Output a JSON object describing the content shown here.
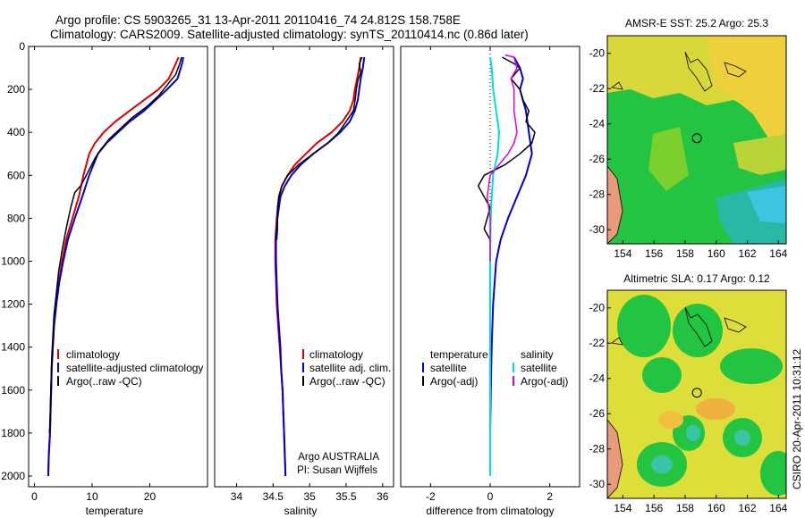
{
  "header": {
    "line1": "Argo profile: CS 5903265_31 13-Apr-2011 20110416_74 24.812S 158.758E",
    "line2": "Climatology: CARS2009. Satellite-adjusted climatology: synTS_20110414.nc (0.86d later)"
  },
  "side_label": "CSIRO 20-Apr-2011 10:31:12",
  "colors": {
    "climatology": "#dd0000",
    "satellite": "#0000cc",
    "argo": "#000000",
    "sat_salinity": "#00dddd",
    "argo_salinity": "#dd00dd"
  },
  "chart_data": [
    {
      "type": "line",
      "id": "temperature",
      "xlabel": "temperature",
      "ylabel": "",
      "xlim": [
        -1,
        30
      ],
      "ylim": [
        2050,
        0
      ],
      "xticks": [
        0,
        10,
        20
      ],
      "yticks": [
        0,
        200,
        400,
        600,
        800,
        1000,
        1200,
        1400,
        1600,
        1800,
        2000
      ],
      "legend": {
        "placement": "bottom",
        "entries": [
          "climatology",
          "satellite-adjusted climatology",
          "Argo(..raw -QC)"
        ]
      },
      "series": [
        {
          "name": "climatology",
          "color": "#dd0000",
          "points": [
            [
              25.0,
              50
            ],
            [
              24.5,
              80
            ],
            [
              23.3,
              150
            ],
            [
              21.5,
              200
            ],
            [
              19.0,
              250
            ],
            [
              16.5,
              300
            ],
            [
              14.0,
              350
            ],
            [
              12.0,
              400
            ],
            [
              10.5,
              450
            ],
            [
              9.5,
              500
            ],
            [
              8.5,
              600
            ],
            [
              7.7,
              700
            ],
            [
              6.6,
              800
            ],
            [
              5.5,
              900
            ],
            [
              4.8,
              1000
            ],
            [
              4.2,
              1100
            ],
            [
              3.8,
              1200
            ],
            [
              3.4,
              1300
            ],
            [
              3.2,
              1400
            ],
            [
              3.0,
              1500
            ],
            [
              2.9,
              1600
            ],
            [
              2.8,
              1700
            ],
            [
              2.7,
              1800
            ],
            [
              2.5,
              1900
            ],
            [
              2.4,
              2000
            ]
          ]
        },
        {
          "name": "satellite",
          "color": "#0000cc",
          "points": [
            [
              25.8,
              50
            ],
            [
              25.6,
              80
            ],
            [
              24.8,
              150
            ],
            [
              23.0,
              200
            ],
            [
              21.0,
              250
            ],
            [
              19.0,
              300
            ],
            [
              16.5,
              350
            ],
            [
              14.5,
              400
            ],
            [
              12.5,
              450
            ],
            [
              11.0,
              500
            ],
            [
              9.5,
              600
            ],
            [
              8.3,
              700
            ],
            [
              7.0,
              800
            ],
            [
              5.8,
              900
            ],
            [
              5.0,
              1000
            ],
            [
              4.3,
              1100
            ],
            [
              3.8,
              1200
            ],
            [
              3.4,
              1300
            ],
            [
              3.2,
              1400
            ],
            [
              3.0,
              1500
            ],
            [
              2.9,
              1600
            ],
            [
              2.8,
              1700
            ],
            [
              2.7,
              1800
            ],
            [
              2.5,
              1900
            ],
            [
              2.4,
              2000
            ]
          ]
        },
        {
          "name": "Argo",
          "color": "#000000",
          "points": [
            [
              25.5,
              50
            ],
            [
              25.2,
              80
            ],
            [
              24.5,
              130
            ],
            [
              23.0,
              180
            ],
            [
              21.5,
              230
            ],
            [
              19.5,
              280
            ],
            [
              17.0,
              330
            ],
            [
              15.0,
              380
            ],
            [
              13.0,
              430
            ],
            [
              11.5,
              480
            ],
            [
              10.5,
              520
            ],
            [
              9.0,
              600
            ],
            [
              8.0,
              650
            ],
            [
              7.0,
              680
            ],
            [
              6.3,
              750
            ],
            [
              5.5,
              850
            ],
            [
              4.8,
              950
            ],
            [
              4.2,
              1050
            ],
            [
              3.8,
              1150
            ],
            [
              3.4,
              1250
            ],
            [
              3.2,
              1350
            ],
            [
              3.0,
              1450
            ],
            [
              2.9,
              1550
            ],
            [
              2.8,
              1650
            ],
            [
              2.7,
              1750
            ],
            [
              2.6,
              1800
            ]
          ]
        }
      ]
    },
    {
      "type": "line",
      "id": "salinity",
      "xlabel": "salinity",
      "ylabel": "",
      "xlim": [
        33.7,
        36.15
      ],
      "ylim": [
        2050,
        0
      ],
      "xticks": [
        34,
        34.5,
        35,
        35.5,
        36
      ],
      "yticks": [],
      "legend": {
        "placement": "bottom",
        "entries": [
          "climatology",
          "satellite adj. clim.",
          "Argo(..raw -QC)"
        ]
      },
      "annotation": [
        "Argo AUSTRALIA",
        "PI: Susan Wijffels"
      ],
      "series": [
        {
          "name": "climatology",
          "color": "#dd0000",
          "points": [
            [
              35.7,
              50
            ],
            [
              35.68,
              100
            ],
            [
              35.65,
              150
            ],
            [
              35.62,
              200
            ],
            [
              35.6,
              250
            ],
            [
              35.55,
              300
            ],
            [
              35.45,
              350
            ],
            [
              35.3,
              400
            ],
            [
              35.1,
              450
            ],
            [
              34.95,
              500
            ],
            [
              34.8,
              550
            ],
            [
              34.7,
              600
            ],
            [
              34.62,
              650
            ],
            [
              34.58,
              700
            ],
            [
              34.55,
              800
            ],
            [
              34.53,
              900
            ],
            [
              34.53,
              1000
            ],
            [
              34.54,
              1100
            ],
            [
              34.55,
              1200
            ],
            [
              34.57,
              1300
            ],
            [
              34.59,
              1400
            ],
            [
              34.61,
              1500
            ],
            [
              34.63,
              1600
            ],
            [
              34.64,
              1700
            ],
            [
              34.65,
              1800
            ],
            [
              34.66,
              1900
            ],
            [
              34.67,
              2000
            ]
          ]
        },
        {
          "name": "satellite",
          "color": "#0000cc",
          "points": [
            [
              35.75,
              50
            ],
            [
              35.73,
              100
            ],
            [
              35.7,
              150
            ],
            [
              35.68,
              200
            ],
            [
              35.66,
              250
            ],
            [
              35.62,
              300
            ],
            [
              35.55,
              350
            ],
            [
              35.42,
              400
            ],
            [
              35.25,
              450
            ],
            [
              35.05,
              500
            ],
            [
              34.88,
              550
            ],
            [
              34.75,
              600
            ],
            [
              34.66,
              650
            ],
            [
              34.6,
              700
            ],
            [
              34.56,
              800
            ],
            [
              34.54,
              900
            ],
            [
              34.54,
              1000
            ],
            [
              34.55,
              1100
            ],
            [
              34.56,
              1200
            ],
            [
              34.58,
              1300
            ],
            [
              34.6,
              1400
            ],
            [
              34.61,
              1500
            ],
            [
              34.63,
              1600
            ],
            [
              34.64,
              1700
            ],
            [
              34.65,
              1800
            ],
            [
              34.66,
              1900
            ],
            [
              34.67,
              2000
            ]
          ]
        },
        {
          "name": "Argo",
          "color": "#000000",
          "points": [
            [
              35.72,
              50
            ],
            [
              35.68,
              80
            ],
            [
              35.7,
              120
            ],
            [
              35.66,
              160
            ],
            [
              35.64,
              200
            ],
            [
              35.62,
              260
            ],
            [
              35.6,
              300
            ],
            [
              35.5,
              350
            ],
            [
              35.4,
              400
            ],
            [
              35.25,
              450
            ],
            [
              35.05,
              500
            ],
            [
              34.85,
              550
            ],
            [
              34.7,
              600
            ],
            [
              34.62,
              650
            ],
            [
              34.58,
              700
            ],
            [
              34.56,
              750
            ],
            [
              34.56,
              850
            ],
            [
              34.55,
              900
            ]
          ]
        }
      ]
    },
    {
      "type": "line",
      "id": "difference",
      "xlabel": "difference from climatology",
      "ylabel": "",
      "xlim": [
        -3,
        3
      ],
      "ylim": [
        2050,
        0
      ],
      "xticks": [
        -2,
        0,
        2
      ],
      "yticks": [],
      "legend": {
        "placement": "bottom",
        "columns": [
          {
            "title": "temperature",
            "entries": [
              "satellite",
              "Argo(-adj)"
            ]
          },
          {
            "title": "salinity",
            "entries": [
              "satellite",
              "Argo(-adj)"
            ]
          }
        ]
      },
      "series": [
        {
          "name": "temperature satellite",
          "color": "#0000cc",
          "points": [
            [
              0.8,
              50
            ],
            [
              1.0,
              100
            ],
            [
              1.1,
              150
            ],
            [
              1.0,
              200
            ],
            [
              1.2,
              300
            ],
            [
              1.3,
              400
            ],
            [
              1.4,
              500
            ],
            [
              1.2,
              600
            ],
            [
              0.9,
              700
            ],
            [
              0.6,
              800
            ],
            [
              0.35,
              900
            ],
            [
              0.2,
              1000
            ],
            [
              0.1,
              1200
            ],
            [
              0.05,
              1400
            ],
            [
              0.02,
              1600
            ],
            [
              0.0,
              1800
            ],
            [
              0.0,
              2000
            ]
          ]
        },
        {
          "name": "temperature Argo(-adj)",
          "color": "#000000",
          "points": [
            [
              0.4,
              50
            ],
            [
              0.8,
              80
            ],
            [
              1.0,
              100
            ],
            [
              0.7,
              150
            ],
            [
              1.0,
              200
            ],
            [
              1.1,
              250
            ],
            [
              1.3,
              300
            ],
            [
              1.2,
              350
            ],
            [
              1.5,
              400
            ],
            [
              1.4,
              450
            ],
            [
              1.0,
              500
            ],
            [
              0.5,
              550
            ],
            [
              -0.2,
              600
            ],
            [
              -0.4,
              650
            ],
            [
              -0.2,
              700
            ],
            [
              0.0,
              750
            ],
            [
              -0.1,
              800
            ],
            [
              -0.2,
              850
            ],
            [
              0.0,
              900
            ],
            [
              0.0,
              1000
            ],
            [
              0.0,
              1200
            ],
            [
              0.0,
              1500
            ],
            [
              0.0,
              1800
            ]
          ]
        },
        {
          "name": "salinity satellite",
          "color": "#00dddd",
          "points": [
            [
              0.0,
              50
            ],
            [
              0.05,
              100
            ],
            [
              0.1,
              200
            ],
            [
              0.2,
              300
            ],
            [
              0.3,
              400
            ],
            [
              0.25,
              500
            ],
            [
              0.1,
              600
            ],
            [
              0.05,
              700
            ],
            [
              0.02,
              800
            ],
            [
              0.01,
              900
            ],
            [
              0.0,
              1000
            ],
            [
              0.0,
              1200
            ],
            [
              0.0,
              1500
            ],
            [
              0.0,
              1800
            ],
            [
              0.0,
              2000
            ]
          ]
        },
        {
          "name": "salinity Argo(-adj)",
          "color": "#dd00dd",
          "points": [
            [
              0.5,
              40
            ],
            [
              0.8,
              50
            ],
            [
              0.9,
              100
            ],
            [
              0.7,
              150
            ],
            [
              0.8,
              200
            ],
            [
              0.8,
              300
            ],
            [
              0.9,
              400
            ],
            [
              0.8,
              450
            ],
            [
              0.6,
              500
            ],
            [
              0.3,
              550
            ],
            [
              0.0,
              600
            ],
            [
              -0.1,
              700
            ],
            [
              0.0,
              800
            ],
            [
              0.0,
              900
            ],
            [
              0.0,
              1000
            ]
          ]
        }
      ]
    },
    {
      "type": "heatmap",
      "id": "sst",
      "title": "AMSR-E SST: 25.2  Argo: 25.3",
      "xlim": [
        153,
        164.5
      ],
      "ylim": [
        -30.8,
        -19
      ],
      "xticks": [
        154,
        156,
        158,
        160,
        162,
        164
      ],
      "yticks": [
        -20,
        -22,
        -24,
        -26,
        -28,
        -30
      ],
      "marker": [
        158.76,
        -24.81
      ]
    },
    {
      "type": "heatmap",
      "id": "sla",
      "title": "Altimetric SLA: 0.17  Argo: 0.12",
      "xlim": [
        153,
        164.5
      ],
      "ylim": [
        -30.8,
        -19
      ],
      "xticks": [
        154,
        156,
        158,
        160,
        162,
        164
      ],
      "yticks": [
        -20,
        -22,
        -24,
        -26,
        -28,
        -30
      ],
      "marker": [
        158.76,
        -24.81
      ]
    }
  ]
}
